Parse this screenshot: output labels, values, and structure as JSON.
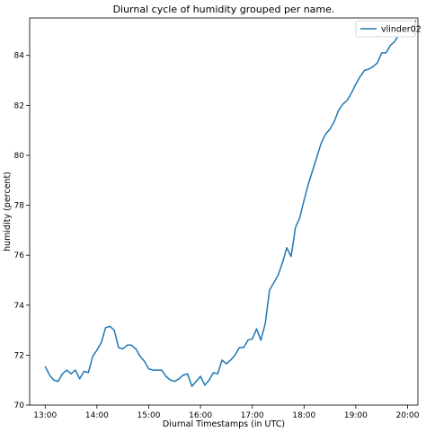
{
  "chart_data": {
    "type": "line",
    "title": "Diurnal cycle of humidity grouped per name.",
    "xlabel": "Diurnal Timestamps (in UTC)",
    "ylabel": "humidity (percent)",
    "x_tick_labels": [
      "13:00",
      "14:00",
      "15:00",
      "16:00",
      "17:00",
      "18:00",
      "19:00",
      "20:00"
    ],
    "x_tick_hours": [
      13,
      14,
      15,
      16,
      17,
      18,
      19,
      20
    ],
    "xlim": [
      12.7,
      20.2
    ],
    "y_ticks": [
      70,
      72,
      74,
      76,
      78,
      80,
      82,
      84
    ],
    "ylim": [
      70,
      85.5
    ],
    "legend_position": "top-right",
    "grid": false,
    "series": [
      {
        "name": "vlinder02",
        "color": "#1f77b4",
        "x": [
          13.0,
          13.083,
          13.167,
          13.25,
          13.333,
          13.417,
          13.5,
          13.583,
          13.667,
          13.75,
          13.833,
          13.917,
          14.0,
          14.083,
          14.167,
          14.25,
          14.333,
          14.417,
          14.5,
          14.583,
          14.667,
          14.75,
          14.833,
          14.917,
          15.0,
          15.083,
          15.167,
          15.25,
          15.333,
          15.417,
          15.5,
          15.583,
          15.667,
          15.75,
          15.833,
          15.917,
          16.0,
          16.083,
          16.167,
          16.25,
          16.333,
          16.417,
          16.5,
          16.583,
          16.667,
          16.75,
          16.833,
          16.917,
          17.0,
          17.083,
          17.167,
          17.25,
          17.333,
          17.417,
          17.5,
          17.583,
          17.667,
          17.75,
          17.833,
          17.917,
          18.0,
          18.083,
          18.167,
          18.25,
          18.333,
          18.417,
          18.5,
          18.583,
          18.667,
          18.75,
          18.833,
          18.917,
          19.0,
          19.083,
          19.167,
          19.25,
          19.333,
          19.417,
          19.5,
          19.583,
          19.667,
          19.75,
          19.833,
          19.917,
          20.0,
          20.083,
          20.167
        ],
        "values": [
          71.55,
          71.2,
          71.0,
          70.95,
          71.25,
          71.4,
          71.25,
          71.4,
          71.05,
          71.35,
          71.3,
          71.95,
          72.2,
          72.5,
          73.1,
          73.15,
          73.0,
          72.3,
          72.25,
          72.4,
          72.4,
          72.25,
          71.95,
          71.75,
          71.45,
          71.4,
          71.4,
          71.4,
          71.15,
          71.0,
          70.95,
          71.05,
          71.2,
          71.25,
          70.75,
          70.95,
          71.15,
          70.8,
          71.0,
          71.3,
          71.25,
          71.8,
          71.65,
          71.8,
          72.0,
          72.3,
          72.3,
          72.6,
          72.65,
          73.05,
          72.6,
          73.25,
          74.6,
          74.9,
          75.2,
          75.7,
          76.3,
          75.95,
          77.1,
          77.5,
          78.2,
          78.85,
          79.4,
          79.95,
          80.5,
          80.85,
          81.05,
          81.35,
          81.8,
          82.05,
          82.2,
          82.5,
          82.85,
          83.15,
          83.4,
          83.45,
          83.55,
          83.7,
          84.1,
          84.1,
          84.4,
          84.55,
          84.85,
          84.95,
          85.05,
          85.2,
          85.4
        ]
      }
    ]
  }
}
